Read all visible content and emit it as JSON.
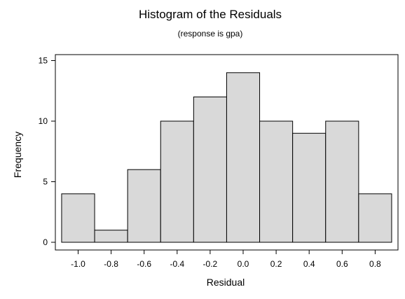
{
  "chart_data": {
    "type": "bar",
    "title": "Histogram of the Residuals",
    "subtitle": "(response is gpa)",
    "xlabel": "Residual",
    "ylabel": "Frequency",
    "bins": [
      {
        "center": -1.0,
        "frequency": 4
      },
      {
        "center": -0.8,
        "frequency": 1
      },
      {
        "center": -0.6,
        "frequency": 6
      },
      {
        "center": -0.4,
        "frequency": 10
      },
      {
        "center": -0.2,
        "frequency": 12
      },
      {
        "center": 0.0,
        "frequency": 14
      },
      {
        "center": 0.2,
        "frequency": 10
      },
      {
        "center": 0.4,
        "frequency": 9
      },
      {
        "center": 0.6,
        "frequency": 10
      },
      {
        "center": 0.8,
        "frequency": 4
      }
    ],
    "bin_width": 0.2,
    "x_ticks": [
      "-1.0",
      "-0.8",
      "-0.6",
      "-0.4",
      "-0.2",
      "0.0",
      "0.2",
      "0.4",
      "0.6",
      "0.8"
    ],
    "x_tick_values": [
      -1.0,
      -0.8,
      -0.6,
      -0.4,
      -0.2,
      0.0,
      0.2,
      0.4,
      0.6,
      0.8
    ],
    "y_ticks": [
      "0",
      "5",
      "10",
      "15"
    ],
    "y_tick_values": [
      0,
      5,
      10,
      15
    ],
    "xlim": [
      -1.1,
      0.9
    ],
    "ylim": [
      0,
      15
    ],
    "grid": false,
    "colors": {
      "bar_fill": "#d9d9d9",
      "bar_stroke": "#000000",
      "background": "#ffffff"
    }
  }
}
